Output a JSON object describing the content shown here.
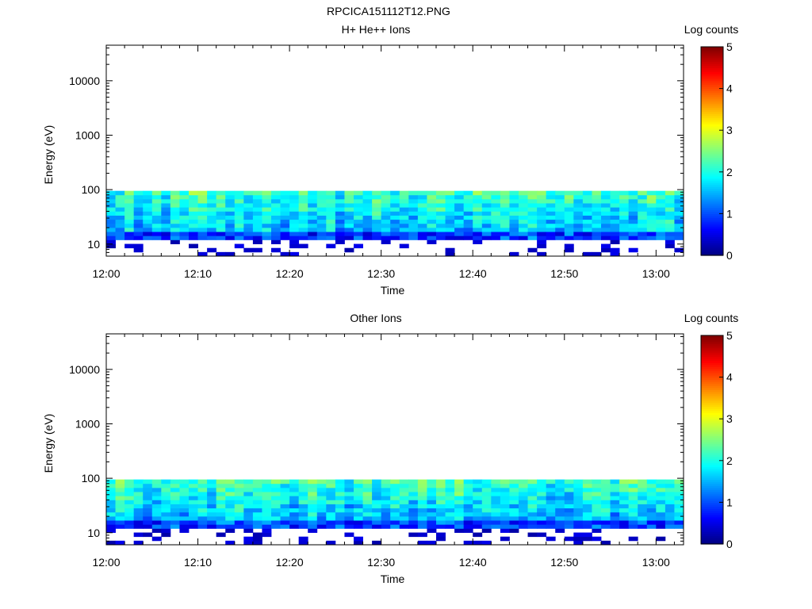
{
  "figure": {
    "title": "RPCICA151112T12.PNG"
  },
  "colorscale": [
    "#00007f",
    "#0000ff",
    "#007fff",
    "#00ffff",
    "#7fff7f",
    "#ffff00",
    "#ff7f00",
    "#ff0000",
    "#7f0000"
  ],
  "chart_data": [
    {
      "type": "heatmap",
      "title": "H+ He++ Ions",
      "xlabel": "Time",
      "ylabel": "Energy (eV)",
      "y_scale": "log",
      "xlim": [
        "12:00",
        "13:03"
      ],
      "ylim": [
        6,
        45000
      ],
      "x_ticks": [
        "12:00",
        "12:10",
        "12:20",
        "12:30",
        "12:40",
        "12:50",
        "13:00"
      ],
      "y_ticks": [
        "10",
        "100",
        "1000",
        "10000"
      ],
      "colorbar": {
        "label": "Log counts",
        "range": [
          0,
          5
        ],
        "ticks": [
          "0",
          "1",
          "2",
          "3",
          "4",
          "5"
        ]
      },
      "energy_range_with_counts": [
        6,
        95
      ],
      "value_range_observed": [
        0.2,
        2.8
      ]
    },
    {
      "type": "heatmap",
      "title": "Other Ions",
      "xlabel": "Time",
      "ylabel": "Energy (eV)",
      "y_scale": "log",
      "xlim": [
        "12:00",
        "13:03"
      ],
      "ylim": [
        6,
        45000
      ],
      "x_ticks": [
        "12:00",
        "12:10",
        "12:20",
        "12:30",
        "12:40",
        "12:50",
        "13:00"
      ],
      "y_ticks": [
        "10",
        "100",
        "1000",
        "10000"
      ],
      "colorbar": {
        "label": "Log counts",
        "range": [
          0,
          5
        ],
        "ticks": [
          "0",
          "1",
          "2",
          "3",
          "4",
          "5"
        ]
      },
      "energy_range_with_counts": [
        6,
        95
      ],
      "value_range_observed": [
        0.2,
        2.7
      ]
    }
  ]
}
